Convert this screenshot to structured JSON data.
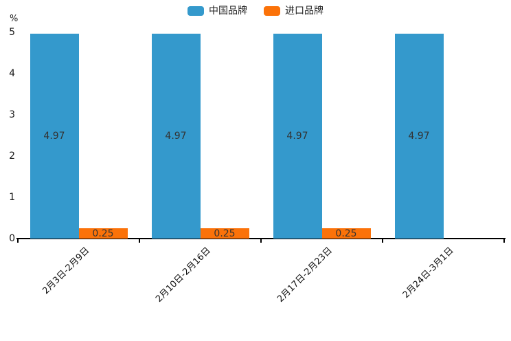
{
  "chart_data": {
    "type": "bar",
    "categories": [
      "2月3日-2月9日",
      "2月10日-2月16日",
      "2月17日-2月23日",
      "2月24日-3月1日"
    ],
    "series": [
      {
        "name": "中国品牌",
        "color": "#3499CC",
        "values": [
          4.97,
          4.97,
          4.97,
          4.97
        ]
      },
      {
        "name": "进口品牌",
        "color": "#FB7209",
        "values": [
          0.25,
          0.25,
          0.25,
          null
        ]
      }
    ],
    "title": "",
    "xlabel": "",
    "ylabel": "%",
    "ylim": [
      0,
      5
    ],
    "yticks": [
      0,
      1,
      2,
      3,
      4,
      5
    ],
    "grid": false,
    "legend_position": "top",
    "bar_label_position": "inside-center",
    "axis_color": "#000000",
    "value_label_color": "#333333"
  }
}
